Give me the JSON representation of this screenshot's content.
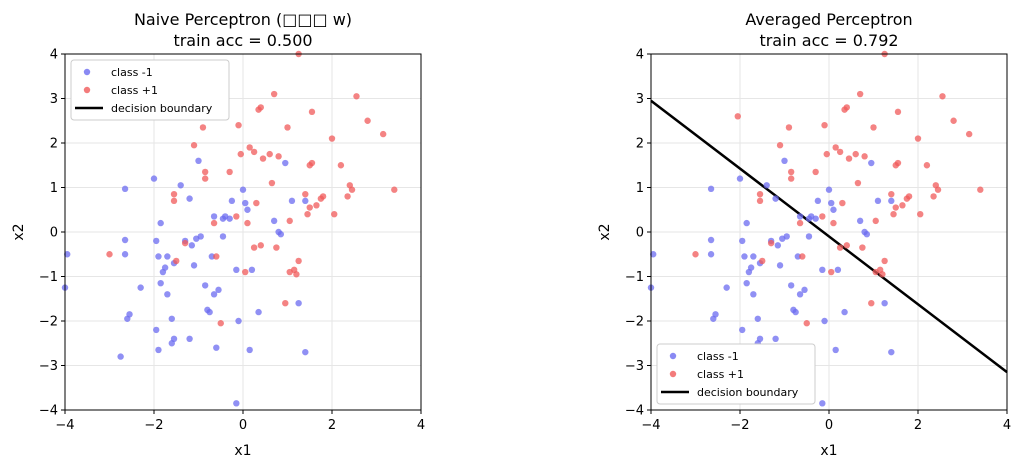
{
  "chart_data": [
    {
      "type": "scatter",
      "title": "Naive Perceptron (□□□ w)",
      "subtitle": "train acc = 0.500",
      "xlabel": "x1",
      "ylabel": "x2",
      "xlim": [
        -4,
        4
      ],
      "ylim": [
        -4,
        4
      ],
      "xticks": [
        "−4",
        "−2",
        "0",
        "2",
        "4"
      ],
      "yticks": [
        "−4",
        "−3",
        "−2",
        "−1",
        "0",
        "1",
        "2",
        "3",
        "4"
      ],
      "grid": true,
      "legend_position": "upper-left",
      "decision_boundary": null,
      "series": [
        {
          "name": "class -1",
          "color": "#6b6bf0"
        },
        {
          "name": "class +1",
          "color": "#f05a5a"
        },
        {
          "name": "decision boundary",
          "color": "#000000"
        }
      ]
    },
    {
      "type": "scatter",
      "title": "Averaged Perceptron",
      "subtitle": "train acc = 0.792",
      "xlabel": "x1",
      "ylabel": "x2",
      "xlim": [
        -4,
        4
      ],
      "ylim": [
        -4,
        4
      ],
      "xticks": [
        "−4",
        "−2",
        "0",
        "2",
        "4"
      ],
      "yticks": [
        "−4",
        "−3",
        "−2",
        "−1",
        "0",
        "1",
        "2",
        "3",
        "4"
      ],
      "grid": true,
      "legend_position": "lower-left",
      "decision_boundary": [
        [
          -4,
          2.95
        ],
        [
          4,
          -3.15
        ]
      ],
      "series": [
        {
          "name": "class -1",
          "color": "#6b6bf0"
        },
        {
          "name": "class +1",
          "color": "#f05a5a"
        },
        {
          "name": "decision boundary",
          "color": "#000000"
        }
      ]
    }
  ],
  "points": {
    "class_neg": [
      [
        -4.0,
        -1.25
      ],
      [
        -3.95,
        -0.5
      ],
      [
        -2.75,
        -2.8
      ],
      [
        -2.65,
        0.97
      ],
      [
        -2.65,
        -0.18
      ],
      [
        -2.65,
        -0.5
      ],
      [
        -2.6,
        -1.95
      ],
      [
        -2.55,
        -1.85
      ],
      [
        -2.3,
        -1.25
      ],
      [
        -2.0,
        1.2
      ],
      [
        -1.95,
        -2.2
      ],
      [
        -1.95,
        -0.2
      ],
      [
        -1.9,
        -2.65
      ],
      [
        -1.9,
        -0.55
      ],
      [
        -1.85,
        0.2
      ],
      [
        -1.85,
        -1.15
      ],
      [
        -1.8,
        -0.9
      ],
      [
        -1.75,
        -0.8
      ],
      [
        -1.7,
        -1.4
      ],
      [
        -1.7,
        -0.55
      ],
      [
        -1.6,
        -2.5
      ],
      [
        -1.6,
        -1.95
      ],
      [
        -1.55,
        -2.4
      ],
      [
        -1.55,
        -0.7
      ],
      [
        -1.4,
        1.05
      ],
      [
        -1.3,
        -0.2
      ],
      [
        -1.2,
        0.75
      ],
      [
        -1.2,
        -2.4
      ],
      [
        -1.15,
        -0.3
      ],
      [
        -1.1,
        -0.75
      ],
      [
        -1.05,
        -0.15
      ],
      [
        -1.0,
        1.6
      ],
      [
        -0.95,
        -0.1
      ],
      [
        -0.85,
        -1.2
      ],
      [
        -0.8,
        -1.75
      ],
      [
        -0.75,
        -1.8
      ],
      [
        -0.7,
        -0.55
      ],
      [
        -0.65,
        0.35
      ],
      [
        -0.65,
        -1.4
      ],
      [
        -0.6,
        -2.6
      ],
      [
        -0.55,
        -1.3
      ],
      [
        -0.45,
        0.3
      ],
      [
        -0.45,
        -0.1
      ],
      [
        -0.4,
        0.35
      ],
      [
        -0.3,
        0.3
      ],
      [
        -0.25,
        0.7
      ],
      [
        -0.15,
        -3.85
      ],
      [
        -0.15,
        -0.85
      ],
      [
        -0.1,
        -2.0
      ],
      [
        0.0,
        0.95
      ],
      [
        0.05,
        0.65
      ],
      [
        0.1,
        0.5
      ],
      [
        0.15,
        -2.65
      ],
      [
        0.2,
        -0.85
      ],
      [
        0.35,
        -1.8
      ],
      [
        0.7,
        0.25
      ],
      [
        0.8,
        0.0
      ],
      [
        0.85,
        -0.05
      ],
      [
        0.95,
        1.55
      ],
      [
        1.1,
        0.7
      ],
      [
        1.25,
        -1.6
      ],
      [
        1.4,
        0.7
      ],
      [
        1.4,
        -2.7
      ]
    ],
    "class_pos": [
      [
        -3.0,
        -0.5
      ],
      [
        -2.05,
        2.6
      ],
      [
        -1.55,
        0.85
      ],
      [
        -1.55,
        0.7
      ],
      [
        -1.5,
        -0.65
      ],
      [
        -1.3,
        -0.25
      ],
      [
        -1.1,
        1.95
      ],
      [
        -0.9,
        2.35
      ],
      [
        -0.85,
        1.35
      ],
      [
        -0.85,
        1.2
      ],
      [
        -0.65,
        0.2
      ],
      [
        -0.6,
        -0.55
      ],
      [
        -0.5,
        -2.05
      ],
      [
        -0.3,
        1.35
      ],
      [
        -0.15,
        0.35
      ],
      [
        -0.1,
        2.4
      ],
      [
        -0.05,
        1.75
      ],
      [
        0.05,
        -0.9
      ],
      [
        0.1,
        0.2
      ],
      [
        0.15,
        1.9
      ],
      [
        0.25,
        1.8
      ],
      [
        0.25,
        -0.35
      ],
      [
        0.3,
        0.65
      ],
      [
        0.35,
        2.75
      ],
      [
        0.4,
        2.8
      ],
      [
        0.4,
        -0.3
      ],
      [
        0.45,
        1.65
      ],
      [
        0.6,
        1.75
      ],
      [
        0.65,
        1.1
      ],
      [
        0.7,
        3.1
      ],
      [
        0.75,
        -0.35
      ],
      [
        0.8,
        1.7
      ],
      [
        0.95,
        -1.6
      ],
      [
        1.0,
        2.35
      ],
      [
        1.05,
        0.25
      ],
      [
        1.05,
        -0.9
      ],
      [
        1.15,
        -0.85
      ],
      [
        1.2,
        -0.95
      ],
      [
        1.25,
        -0.65
      ],
      [
        1.25,
        4.0
      ],
      [
        1.4,
        0.85
      ],
      [
        1.45,
        0.4
      ],
      [
        1.5,
        0.55
      ],
      [
        1.5,
        1.5
      ],
      [
        1.55,
        1.55
      ],
      [
        1.55,
        2.7
      ],
      [
        1.65,
        0.6
      ],
      [
        1.75,
        0.75
      ],
      [
        1.8,
        0.8
      ],
      [
        2.0,
        2.1
      ],
      [
        2.05,
        0.4
      ],
      [
        2.2,
        1.5
      ],
      [
        2.35,
        0.8
      ],
      [
        2.4,
        1.05
      ],
      [
        2.45,
        0.95
      ],
      [
        2.55,
        3.05
      ],
      [
        2.8,
        2.5
      ],
      [
        3.15,
        2.2
      ],
      [
        3.4,
        0.95
      ]
    ]
  }
}
